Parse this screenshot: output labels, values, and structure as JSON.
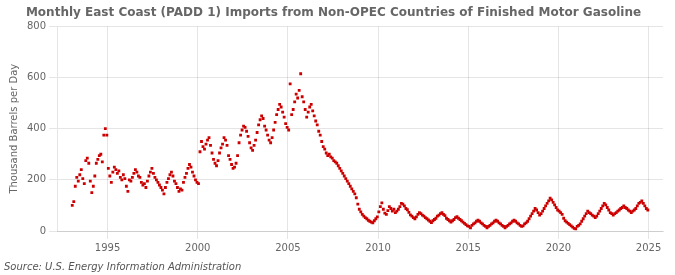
{
  "chart_data": {
    "type": "scatter",
    "title": "Monthly East Coast (PADD 1) Imports from Non-OPEC Countries of Finished Motor Gasoline",
    "y_label": "Thousand Barrels per Day",
    "annotation": "Source: U.S. Energy Information Administration",
    "color": "#cc0000",
    "marker": "square",
    "grid": true,
    "xlim": [
      1992.2,
      2025.8
    ],
    "xticks": [
      1995,
      2000,
      2005,
      2010,
      2015,
      2020,
      2025
    ],
    "ylim": [
      0,
      800
    ],
    "yticks": [
      0,
      200,
      400,
      600,
      800
    ],
    "x": [
      1993.0416666666667,
      1993.125,
      1993.2083333333333,
      1993.2916666666667,
      1993.375,
      1993.4583333333333,
      1993.5416666666667,
      1993.625,
      1993.7083333333333,
      1993.7916666666667,
      1993.875,
      1993.9583333333333,
      1994.0416666666667,
      1994.125,
      1994.2083333333333,
      1994.2916666666667,
      1994.375,
      1994.4583333333333,
      1994.5416666666667,
      1994.625,
      1994.7083333333333,
      1994.7916666666667,
      1994.875,
      1994.9583333333333,
      1995.0416666666667,
      1995.125,
      1995.2083333333333,
      1995.2916666666667,
      1995.375,
      1995.4583333333333,
      1995.5416666666667,
      1995.625,
      1995.7083333333333,
      1995.7916666666667,
      1995.875,
      1995.9583333333333,
      1996.0416666666667,
      1996.125,
      1996.2083333333333,
      1996.2916666666667,
      1996.375,
      1996.4583333333333,
      1996.5416666666667,
      1996.625,
      1996.7083333333333,
      1996.7916666666667,
      1996.875,
      1996.9583333333333,
      1997.0416666666667,
      1997.125,
      1997.2083333333333,
      1997.2916666666667,
      1997.375,
      1997.4583333333333,
      1997.5416666666667,
      1997.625,
      1997.7083333333333,
      1997.7916666666667,
      1997.875,
      1997.9583333333333,
      1998.0416666666667,
      1998.125,
      1998.2083333333333,
      1998.2916666666667,
      1998.375,
      1998.4583333333333,
      1998.5416666666667,
      1998.625,
      1998.7083333333333,
      1998.7916666666667,
      1998.875,
      1998.9583333333333,
      1999.0416666666667,
      1999.125,
      1999.2083333333333,
      1999.2916666666667,
      1999.375,
      1999.4583333333333,
      1999.5416666666667,
      1999.625,
      1999.7083333333333,
      1999.7916666666667,
      1999.875,
      1999.9583333333333,
      2000.0416666666667,
      2000.125,
      2000.2083333333333,
      2000.2916666666667,
      2000.375,
      2000.4583333333333,
      2000.5416666666667,
      2000.625,
      2000.7083333333333,
      2000.7916666666667,
      2000.875,
      2000.9583333333333,
      2001.0416666666667,
      2001.125,
      2001.2083333333333,
      2001.2916666666667,
      2001.375,
      2001.4583333333333,
      2001.5416666666667,
      2001.625,
      2001.7083333333333,
      2001.7916666666667,
      2001.875,
      2001.9583333333333,
      2002.0416666666667,
      2002.125,
      2002.2083333333333,
      2002.2916666666667,
      2002.375,
      2002.4583333333333,
      2002.5416666666667,
      2002.625,
      2002.7083333333333,
      2002.7916666666667,
      2002.875,
      2002.9583333333333,
      2003.0416666666667,
      2003.125,
      2003.2083333333333,
      2003.2916666666667,
      2003.375,
      2003.4583333333333,
      2003.5416666666667,
      2003.625,
      2003.7083333333333,
      2003.7916666666667,
      2003.875,
      2003.9583333333333,
      2004.0416666666667,
      2004.125,
      2004.2083333333333,
      2004.2916666666667,
      2004.375,
      2004.4583333333333,
      2004.5416666666667,
      2004.625,
      2004.7083333333333,
      2004.7916666666667,
      2004.875,
      2004.9583333333333,
      2005.0416666666667,
      2005.125,
      2005.2083333333333,
      2005.2916666666667,
      2005.375,
      2005.4583333333333,
      2005.5416666666667,
      2005.625,
      2005.7083333333333,
      2005.7916666666667,
      2005.875,
      2005.9583333333333,
      2006.0416666666667,
      2006.125,
      2006.2083333333333,
      2006.2916666666667,
      2006.375,
      2006.4583333333333,
      2006.5416666666667,
      2006.625,
      2006.7083333333333,
      2006.7916666666667,
      2006.875,
      2006.9583333333333,
      2007.0416666666667,
      2007.125,
      2007.2083333333333,
      2007.2916666666667,
      2007.375,
      2007.4583333333333,
      2007.5416666666667,
      2007.625,
      2007.7083333333333,
      2007.7916666666667,
      2007.875,
      2007.9583333333333,
      2008.0416666666667,
      2008.125,
      2008.2083333333333,
      2008.2916666666667,
      2008.375,
      2008.4583333333333,
      2008.5416666666667,
      2008.625,
      2008.7083333333333,
      2008.7916666666667,
      2008.875,
      2008.9583333333333,
      2009.0416666666667,
      2009.125,
      2009.2083333333333,
      2009.2916666666667,
      2009.375,
      2009.4583333333333,
      2009.5416666666667,
      2009.625,
      2009.7083333333333,
      2009.7916666666667,
      2009.875,
      2009.9583333333333,
      2010.0416666666667,
      2010.125,
      2010.2083333333333,
      2010.2916666666667,
      2010.375,
      2010.4583333333333,
      2010.5416666666667,
      2010.625,
      2010.7083333333333,
      2010.7916666666667,
      2010.875,
      2010.9583333333333,
      2011.0416666666667,
      2011.125,
      2011.2083333333333,
      2011.2916666666667,
      2011.375,
      2011.4583333333333,
      2011.5416666666667,
      2011.625,
      2011.7083333333333,
      2011.7916666666667,
      2011.875,
      2011.9583333333333,
      2012.0416666666667,
      2012.125,
      2012.2083333333333,
      2012.2916666666667,
      2012.375,
      2012.4583333333333,
      2012.5416666666667,
      2012.625,
      2012.7083333333333,
      2012.7916666666667,
      2012.875,
      2012.9583333333333,
      2013.0416666666667,
      2013.125,
      2013.2083333333333,
      2013.2916666666667,
      2013.375,
      2013.4583333333333,
      2013.5416666666667,
      2013.625,
      2013.7083333333333,
      2013.7916666666667,
      2013.875,
      2013.9583333333333,
      2014.0416666666667,
      2014.125,
      2014.2083333333333,
      2014.2916666666667,
      2014.375,
      2014.4583333333333,
      2014.5416666666667,
      2014.625,
      2014.7083333333333,
      2014.7916666666667,
      2014.875,
      2014.9583333333333,
      2015.0416666666667,
      2015.125,
      2015.2083333333333,
      2015.2916666666667,
      2015.375,
      2015.4583333333333,
      2015.5416666666667,
      2015.625,
      2015.7083333333333,
      2015.7916666666667,
      2015.875,
      2015.9583333333333,
      2016.0416666666667,
      2016.125,
      2016.2083333333333,
      2016.2916666666667,
      2016.375,
      2016.4583333333333,
      2016.5416666666667,
      2016.625,
      2016.7083333333333,
      2016.7916666666667,
      2016.875,
      2016.9583333333333,
      2017.0416666666667,
      2017.125,
      2017.2083333333333,
      2017.2916666666667,
      2017.375,
      2017.4583333333333,
      2017.5416666666667,
      2017.625,
      2017.7083333333333,
      2017.7916666666667,
      2017.875,
      2017.9583333333333,
      2018.0416666666667,
      2018.125,
      2018.2083333333333,
      2018.2916666666667,
      2018.375,
      2018.4583333333333,
      2018.5416666666667,
      2018.625,
      2018.7083333333333,
      2018.7916666666667,
      2018.875,
      2018.9583333333333,
      2019.0416666666667,
      2019.125,
      2019.2083333333333,
      2019.2916666666667,
      2019.375,
      2019.4583333333333,
      2019.5416666666667,
      2019.625,
      2019.7083333333333,
      2019.7916666666667,
      2019.875,
      2019.9583333333333,
      2020.0416666666667,
      2020.125,
      2020.2083333333333,
      2020.2916666666667,
      2020.375,
      2020.4583333333333,
      2020.5416666666667,
      2020.625,
      2020.7083333333333,
      2020.7916666666667,
      2020.875,
      2020.9583333333333,
      2021.0416666666667,
      2021.125,
      2021.2083333333333,
      2021.2916666666667,
      2021.375,
      2021.4583333333333,
      2021.5416666666667,
      2021.625,
      2021.7083333333333,
      2021.7916666666667,
      2021.875,
      2021.9583333333333,
      2022.0416666666667,
      2022.125,
      2022.2083333333333,
      2022.2916666666667,
      2022.375,
      2022.4583333333333,
      2022.5416666666667,
      2022.625,
      2022.7083333333333,
      2022.7916666666667,
      2022.875,
      2022.9583333333333,
      2023.0416666666667,
      2023.125,
      2023.2083333333333,
      2023.2916666666667,
      2023.375,
      2023.4583333333333,
      2023.5416666666667,
      2023.625,
      2023.7083333333333,
      2023.7916666666667,
      2023.875,
      2023.9583333333333,
      2024.0416666666667,
      2024.125,
      2024.2083333333333,
      2024.2916666666667,
      2024.375,
      2024.4583333333333,
      2024.5416666666667,
      2024.625,
      2024.7083333333333,
      2024.7916666666667,
      2024.875,
      2024.9583333333333
    ],
    "values": [
      100,
      115,
      175,
      210,
      195,
      220,
      240,
      205,
      185,
      275,
      285,
      265,
      195,
      150,
      175,
      215,
      265,
      280,
      295,
      300,
      270,
      375,
      400,
      375,
      245,
      215,
      190,
      230,
      250,
      240,
      225,
      235,
      210,
      200,
      220,
      205,
      175,
      155,
      200,
      195,
      210,
      225,
      240,
      230,
      215,
      210,
      190,
      180,
      185,
      170,
      195,
      215,
      230,
      245,
      225,
      210,
      200,
      190,
      180,
      170,
      160,
      145,
      170,
      190,
      205,
      220,
      230,
      215,
      195,
      185,
      170,
      155,
      165,
      160,
      190,
      210,
      225,
      245,
      260,
      250,
      230,
      215,
      200,
      190,
      185,
      310,
      350,
      330,
      320,
      340,
      355,
      365,
      335,
      305,
      280,
      265,
      255,
      275,
      305,
      325,
      340,
      365,
      355,
      335,
      295,
      280,
      260,
      245,
      250,
      265,
      295,
      345,
      375,
      395,
      410,
      405,
      390,
      370,
      345,
      325,
      315,
      335,
      355,
      385,
      415,
      435,
      450,
      440,
      410,
      395,
      375,
      355,
      345,
      365,
      395,
      425,
      455,
      475,
      495,
      485,
      465,
      445,
      420,
      405,
      395,
      575,
      455,
      475,
      505,
      535,
      520,
      550,
      615,
      525,
      505,
      475,
      445,
      465,
      485,
      495,
      470,
      450,
      430,
      415,
      390,
      375,
      350,
      330,
      320,
      305,
      295,
      300,
      290,
      285,
      275,
      270,
      265,
      255,
      245,
      235,
      225,
      215,
      205,
      195,
      185,
      175,
      165,
      155,
      145,
      130,
      105,
      85,
      75,
      65,
      58,
      52,
      48,
      42,
      38,
      35,
      32,
      40,
      48,
      55,
      75,
      95,
      110,
      85,
      70,
      65,
      80,
      95,
      88,
      78,
      85,
      72,
      78,
      85,
      95,
      108,
      105,
      98,
      88,
      83,
      73,
      63,
      58,
      52,
      48,
      55,
      65,
      72,
      68,
      62,
      58,
      52,
      48,
      43,
      38,
      33,
      40,
      45,
      50,
      58,
      62,
      68,
      72,
      65,
      60,
      50,
      45,
      40,
      35,
      40,
      45,
      52,
      56,
      50,
      45,
      40,
      35,
      30,
      25,
      20,
      18,
      12,
      22,
      28,
      32,
      38,
      42,
      38,
      32,
      28,
      22,
      18,
      12,
      18,
      22,
      28,
      32,
      38,
      42,
      38,
      32,
      28,
      22,
      18,
      12,
      18,
      22,
      28,
      32,
      38,
      42,
      38,
      32,
      28,
      22,
      18,
      20,
      28,
      32,
      38,
      48,
      58,
      68,
      78,
      88,
      82,
      72,
      62,
      68,
      78,
      88,
      98,
      108,
      118,
      128,
      122,
      112,
      102,
      92,
      82,
      78,
      72,
      65,
      50,
      40,
      35,
      30,
      25,
      20,
      15,
      10,
      8,
      18,
      22,
      28,
      38,
      48,
      58,
      68,
      78,
      72,
      68,
      62,
      58,
      52,
      58,
      68,
      78,
      88,
      98,
      108,
      102,
      92,
      82,
      72,
      68,
      62,
      68,
      72,
      78,
      82,
      88,
      92,
      98,
      92,
      88,
      82,
      78,
      72,
      78,
      82,
      88,
      98,
      108,
      112,
      118,
      108,
      98,
      88,
      82
    ]
  }
}
